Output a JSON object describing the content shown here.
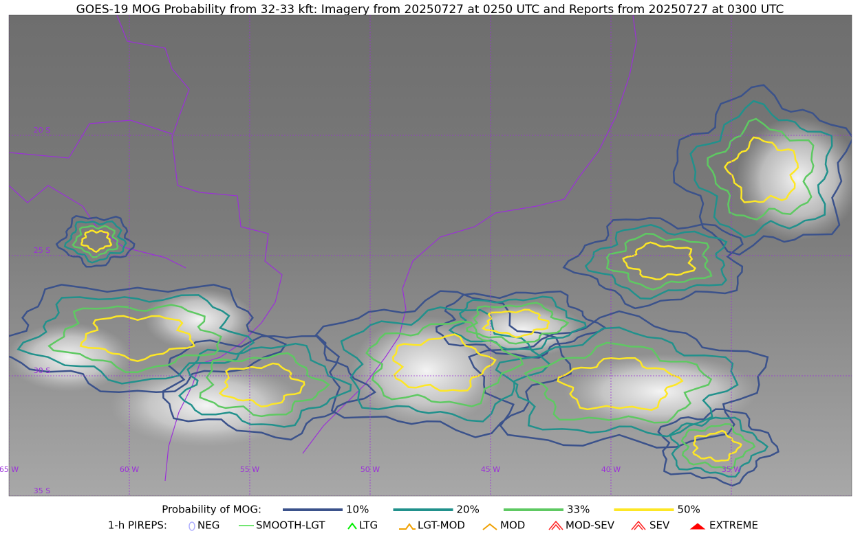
{
  "title": "GOES-19 MOG Probability from 32-33 kft: Imagery from 20250727 at 0250 UTC and Reports from 20250727 at 0300 UTC",
  "grid": {
    "latitudes": [
      "20 S",
      "25 S",
      "30 S",
      "35 S"
    ],
    "longitudes": [
      "65 W",
      "60 W",
      "55 W",
      "50 W",
      "45 W",
      "40 W",
      "35 W"
    ],
    "color": "#9b30d9"
  },
  "legend": {
    "title": "Probability of MOG:",
    "items": [
      {
        "label": "10%",
        "color": "#3b528b"
      },
      {
        "label": "20%",
        "color": "#21918c"
      },
      {
        "label": "33%",
        "color": "#5ec962"
      },
      {
        "label": "50%",
        "color": "#fde725"
      }
    ]
  },
  "pireps": {
    "title": "1-h PIREPS:",
    "items": [
      {
        "label": "NEG",
        "color": "#b0b0ff"
      },
      {
        "label": "SMOOTH-LGT",
        "color": "#44dd44"
      },
      {
        "label": "LTG",
        "color": "#00ee00"
      },
      {
        "label": "LGT-MOD",
        "color": "#f0a000"
      },
      {
        "label": "MOD",
        "color": "#f0a000"
      },
      {
        "label": "MOD-SEV",
        "color": "#ff2020"
      },
      {
        "label": "SEV",
        "color": "#ff2020"
      },
      {
        "label": "EXTREME",
        "color": "#ff0000"
      }
    ]
  }
}
